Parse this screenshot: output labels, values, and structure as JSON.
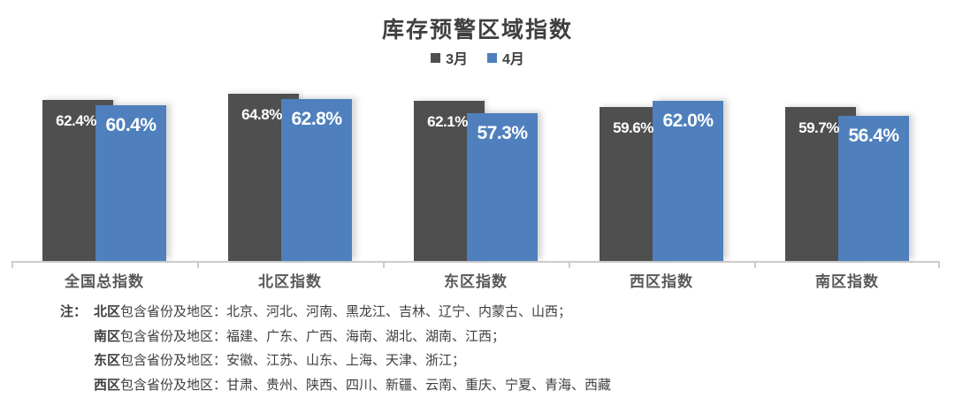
{
  "chart_data": {
    "type": "bar",
    "title": "库存预警区域指数",
    "categories": [
      "全国总指数",
      "北区指数",
      "东区指数",
      "西区指数",
      "南区指数"
    ],
    "series": [
      {
        "name": "3月",
        "color": "#4F4F4F",
        "values": [
          62.4,
          64.8,
          62.1,
          59.6,
          59.7
        ]
      },
      {
        "name": "4月",
        "color": "#4F80BD",
        "values": [
          60.4,
          62.8,
          57.3,
          62.0,
          56.4
        ]
      }
    ],
    "value_suffix": "%",
    "value_decimals": 1,
    "ylim": [
      0,
      70
    ],
    "grid": false,
    "legend_position": "top",
    "data_labels": "inside-end",
    "axis_color": "#cccccc"
  },
  "notes": {
    "prefix": "注：",
    "lines": [
      {
        "region": "北区",
        "text": "包含省份及地区：北京、河北、河南、黑龙江、吉林、辽宁、内蒙古、山西；"
      },
      {
        "region": "南区",
        "text": "包含省份及地区：福建、广东、广西、海南、湖北、湖南、江西；"
      },
      {
        "region": "东区",
        "text": "包含省份及地区：安徽、江苏、山东、上海、天津、浙江；"
      },
      {
        "region": "西区",
        "text": "包含省份及地区：甘肃、贵州、陕西、四川、新疆、云南、重庆、宁夏、青海、西藏"
      }
    ]
  }
}
